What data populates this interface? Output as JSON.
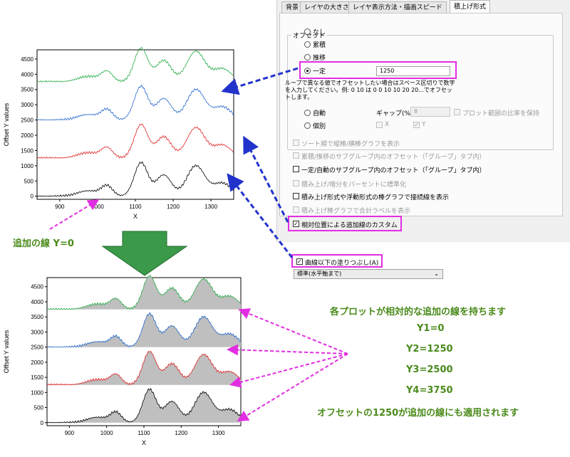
{
  "dialog": {
    "tabs": [
      "背景",
      "レイヤの大きさ",
      "レイヤ表示方法・描画スピード",
      "積上げ形式"
    ],
    "offset_group_label": "オフセット",
    "offset_options": [
      "なし",
      "累積",
      "推移",
      "一定"
    ],
    "offset_value": "1250",
    "note_text": "ループで異なる値でオフセットしたい場合はスペース区切りで数字を入力してください。例: 0 10 は 0 0 10 10 20 20...でオフセットします。",
    "auto_label": "自動",
    "gap_label": "ギャップ(%)",
    "gap_value": "8",
    "keep_ratio_label": "プロット範囲の比率を保持",
    "individual_label": "個別",
    "x_label": "X",
    "y_label": "Y",
    "check_items": [
      "ソート順で縦棒/横棒グラフを表示",
      "累積/推移のサブグループ内のオフセット（「グループ」タブ内）",
      "一定/自動のサブグループ内のオフセット（「グループ」タブ内）",
      "積み上げ/増分をパーセントに標準化",
      "積み上げ形式や浮動形式の棒グラフで接続線を表示",
      "積み上げ棒グラフで合計ラベルを表示"
    ],
    "custom_ref_label": "相対位置による追加線のカスタム",
    "fill_label": "曲線以下の塗りつぶし(A)",
    "fill_select": "標準(水平軸まで)"
  },
  "annotations": {
    "baseline_label": "追加の線 Y=0",
    "relative_line_note": "各プロットが相対的な追加の線を持ちます",
    "y_lines": [
      "Y1=0",
      "Y2=1250",
      "Y3=2500",
      "Y4=3750"
    ],
    "offset_applied_note": "オフセットの1250が追加の線にも適用されます"
  },
  "colors": {
    "highlight": "#e22ee2",
    "annotation_text": "#4a8a1a",
    "big_arrow": "#3a9a4a",
    "blue_arrow": "#2233cc",
    "series": [
      "#000000",
      "#dd2222",
      "#2266cc",
      "#22aa44"
    ],
    "fill_gray": "#bfbfbf"
  },
  "chart_data": [
    {
      "type": "line",
      "xlabel": "X",
      "ylabel": "Offset Y values",
      "x_ticks": [
        900,
        1000,
        1100,
        1200,
        1300
      ],
      "y_ticks": [
        0,
        500,
        1000,
        1500,
        2000,
        2500,
        3000,
        3500,
        4000,
        4500
      ],
      "xlim": [
        840,
        1360
      ],
      "ylim": [
        -100,
        4800
      ],
      "offset": 1250,
      "peaks": [
        [
          975,
          180,
          28
        ],
        [
          1025,
          330,
          15
        ],
        [
          1115,
          1100,
          18
        ],
        [
          1175,
          700,
          20
        ],
        [
          1260,
          1000,
          24
        ],
        [
          1330,
          430,
          24
        ]
      ],
      "series_offsets": [
        0,
        1250,
        2500,
        3750
      ],
      "fill": false
    },
    {
      "type": "area",
      "xlabel": "X",
      "ylabel": "Offset Y values",
      "x_ticks": [
        900,
        1000,
        1100,
        1200,
        1300
      ],
      "y_ticks": [
        0,
        500,
        1000,
        1500,
        2000,
        2500,
        3000,
        3500,
        4000,
        4500
      ],
      "xlim": [
        840,
        1360
      ],
      "ylim": [
        -100,
        4800
      ],
      "offset": 1250,
      "peaks": [
        [
          975,
          180,
          28
        ],
        [
          1025,
          330,
          15
        ],
        [
          1115,
          1100,
          18
        ],
        [
          1175,
          700,
          20
        ],
        [
          1260,
          1000,
          24
        ],
        [
          1330,
          430,
          24
        ]
      ],
      "series_offsets": [
        0,
        1250,
        2500,
        3750
      ],
      "fill": true
    }
  ]
}
